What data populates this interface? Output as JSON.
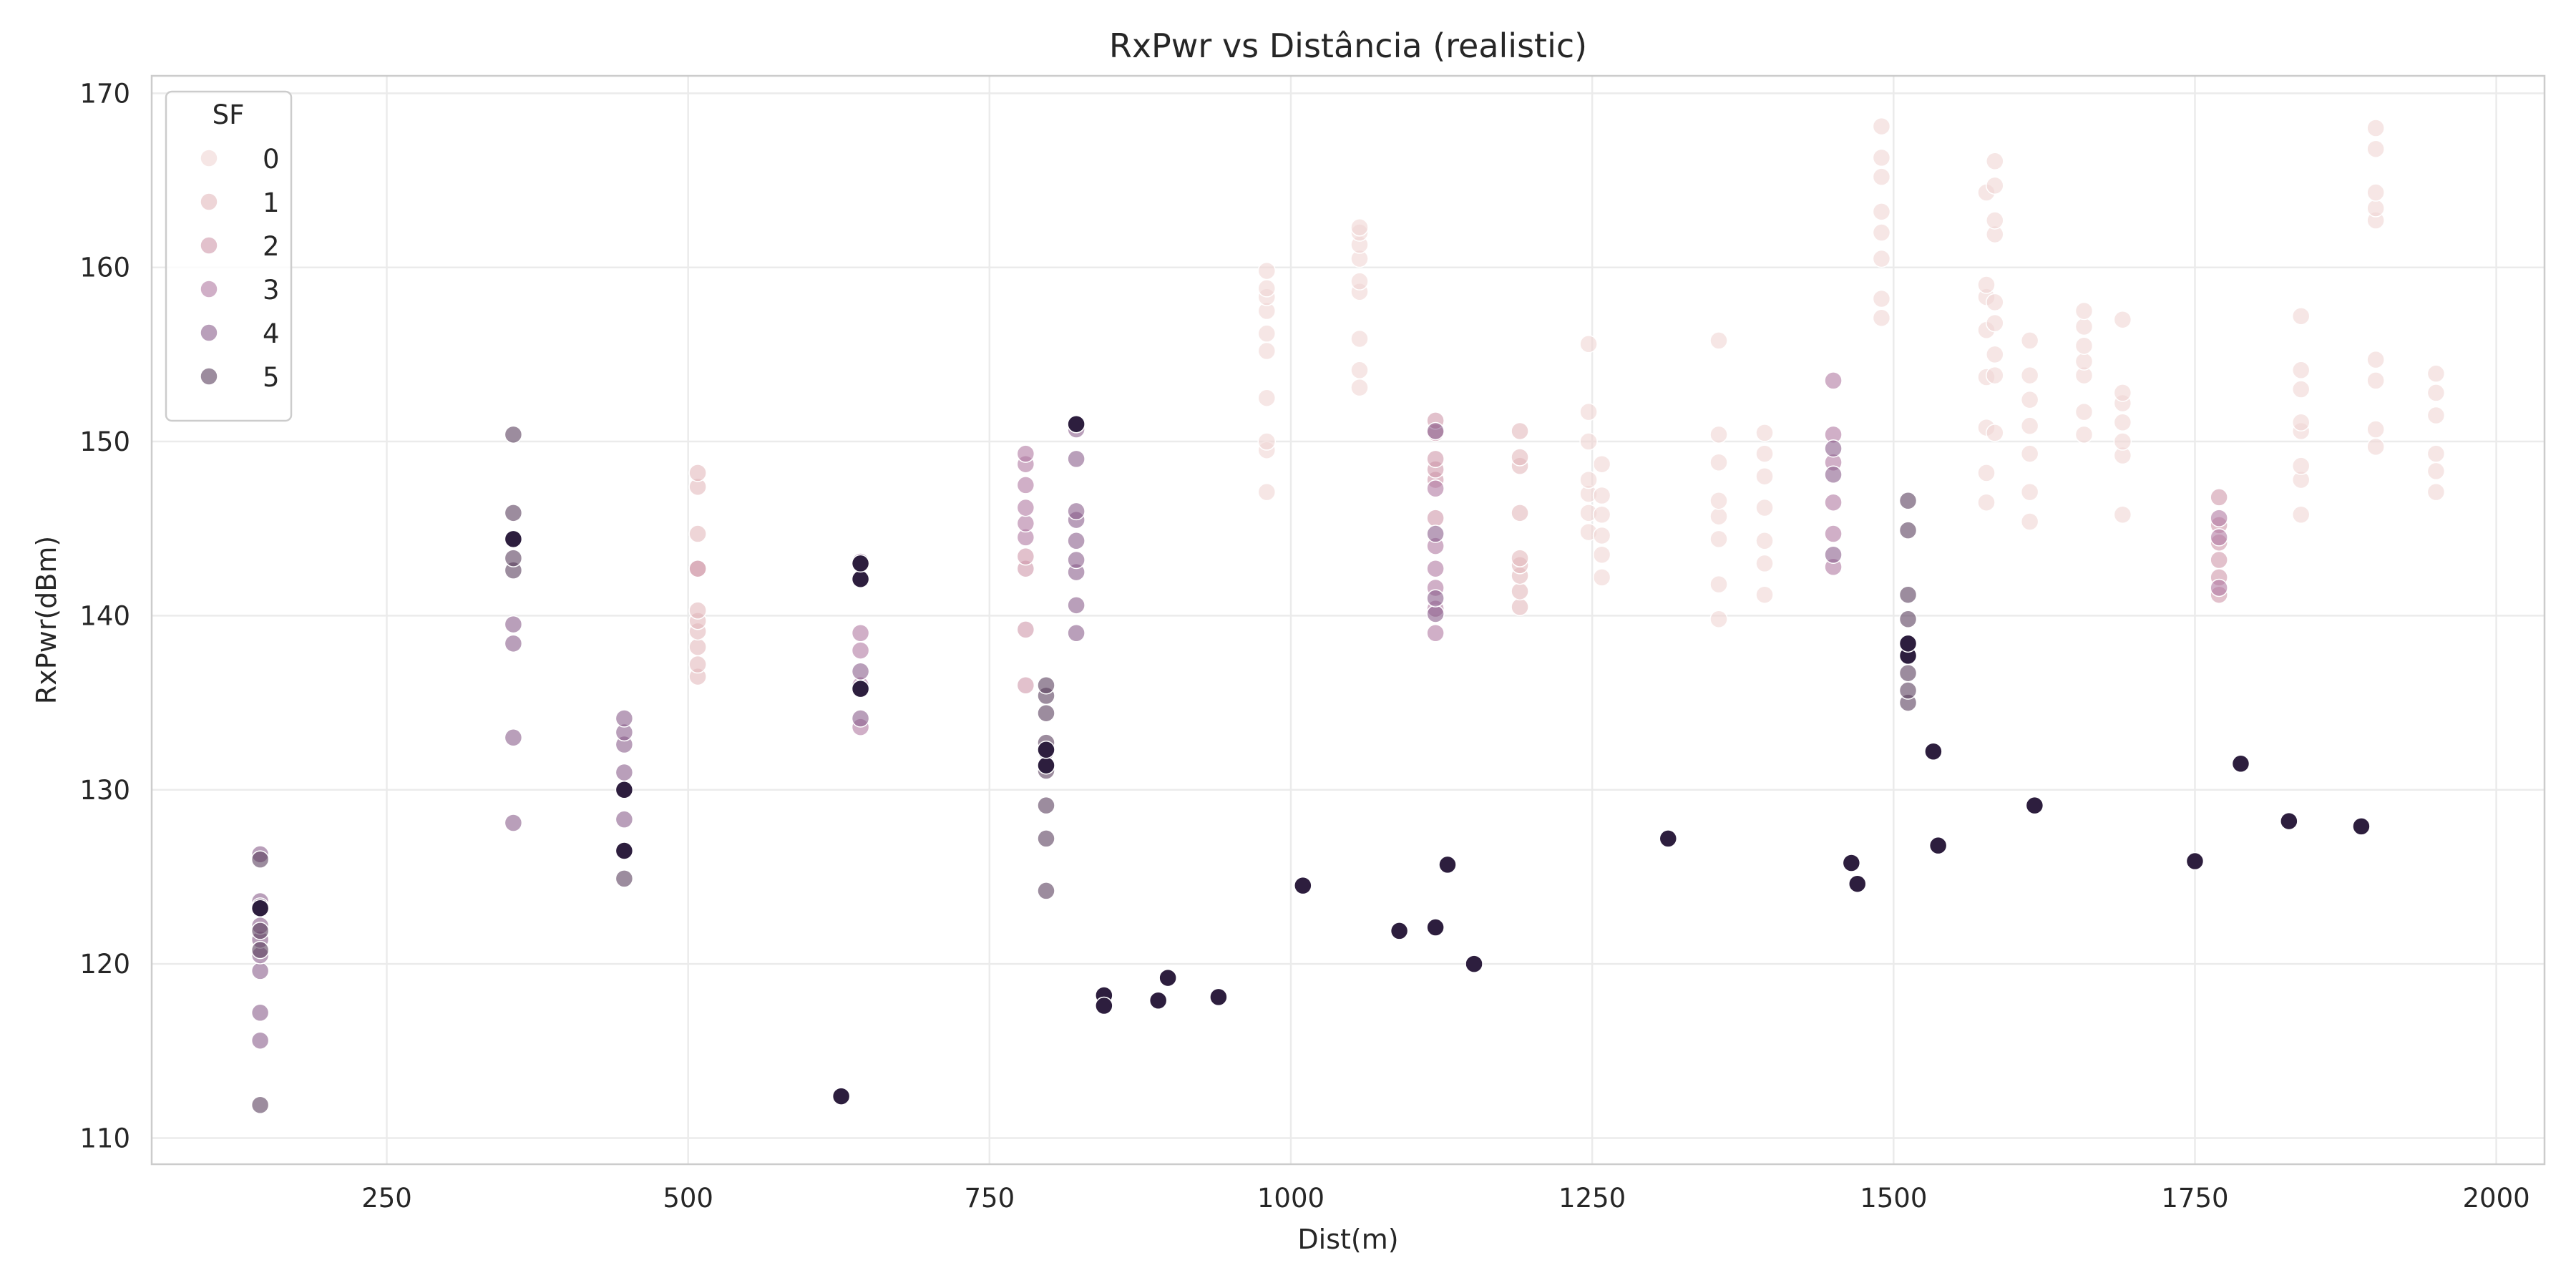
{
  "chart_data": {
    "type": "scatter",
    "title": "RxPwr vs Distância (realistic)",
    "xlabel": "Dist(m)",
    "ylabel": "RxPwr(dBm)",
    "xlim": [
      55,
      2040
    ],
    "ylim": [
      108.5,
      171
    ],
    "xticks": [
      250,
      500,
      750,
      1000,
      1250,
      1500,
      1750,
      2000
    ],
    "yticks": [
      110,
      120,
      130,
      140,
      150,
      160,
      170
    ],
    "grid": true,
    "legend": {
      "title": "SF",
      "position": "top-left"
    },
    "point_opacity": 0.6,
    "series": [
      {
        "name": "0",
        "color": "#f0d6d3",
        "points": [
          [
            980,
            147.1
          ],
          [
            980,
            149.5
          ],
          [
            980,
            150
          ],
          [
            980,
            152.5
          ],
          [
            980,
            155.2
          ],
          [
            980,
            156.2
          ],
          [
            980,
            157.5
          ],
          [
            980,
            158.3
          ],
          [
            980,
            158.8
          ],
          [
            980,
            159.8
          ],
          [
            1057,
            153.1
          ],
          [
            1057,
            154.1
          ],
          [
            1057,
            155.9
          ],
          [
            1057,
            158.6
          ],
          [
            1057,
            159.2
          ],
          [
            1057,
            160.5
          ],
          [
            1057,
            161.3
          ],
          [
            1057,
            162
          ],
          [
            1057,
            162.3
          ],
          [
            1247,
            144.8
          ],
          [
            1247,
            145.9
          ],
          [
            1247,
            147
          ],
          [
            1247,
            147.8
          ],
          [
            1247,
            150
          ],
          [
            1247,
            151.7
          ],
          [
            1247,
            155.6
          ],
          [
            1258,
            142.2
          ],
          [
            1258,
            143.5
          ],
          [
            1258,
            144.6
          ],
          [
            1258,
            145.8
          ],
          [
            1258,
            146.9
          ],
          [
            1258,
            148.7
          ],
          [
            1355,
            139.8
          ],
          [
            1355,
            141.8
          ],
          [
            1355,
            144.4
          ],
          [
            1355,
            145.7
          ],
          [
            1355,
            146.6
          ],
          [
            1355,
            148.8
          ],
          [
            1355,
            150.4
          ],
          [
            1355,
            155.8
          ],
          [
            1393,
            141.2
          ],
          [
            1393,
            143
          ],
          [
            1393,
            144.3
          ],
          [
            1393,
            146.2
          ],
          [
            1393,
            148
          ],
          [
            1393,
            149.3
          ],
          [
            1393,
            150.5
          ],
          [
            1490,
            157.1
          ],
          [
            1490,
            158.2
          ],
          [
            1490,
            160.5
          ],
          [
            1490,
            162
          ],
          [
            1490,
            163.2
          ],
          [
            1490,
            165.2
          ],
          [
            1490,
            166.3
          ],
          [
            1490,
            168.1
          ],
          [
            1577,
            146.5
          ],
          [
            1577,
            148.2
          ],
          [
            1577,
            150.8
          ],
          [
            1577,
            153.7
          ],
          [
            1577,
            156.4
          ],
          [
            1577,
            158.3
          ],
          [
            1577,
            159
          ],
          [
            1577,
            164.3
          ],
          [
            1584,
            150.5
          ],
          [
            1584,
            153.8
          ],
          [
            1584,
            155
          ],
          [
            1584,
            156.8
          ],
          [
            1584,
            158
          ],
          [
            1584,
            161.9
          ],
          [
            1584,
            162.7
          ],
          [
            1584,
            164.7
          ],
          [
            1584,
            166.1
          ],
          [
            1613,
            145.4
          ],
          [
            1613,
            147.1
          ],
          [
            1613,
            149.3
          ],
          [
            1613,
            150.9
          ],
          [
            1613,
            152.4
          ],
          [
            1613,
            153.8
          ],
          [
            1613,
            155.8
          ],
          [
            1658,
            150.4
          ],
          [
            1658,
            151.7
          ],
          [
            1658,
            153.8
          ],
          [
            1658,
            154.6
          ],
          [
            1658,
            155.5
          ],
          [
            1658,
            156.6
          ],
          [
            1658,
            157.5
          ],
          [
            1690,
            145.8
          ],
          [
            1690,
            149.2
          ],
          [
            1690,
            150
          ],
          [
            1690,
            151.1
          ],
          [
            1690,
            152.2
          ],
          [
            1690,
            152.8
          ],
          [
            1690,
            157
          ],
          [
            1838,
            145.8
          ],
          [
            1838,
            147.8
          ],
          [
            1838,
            148.6
          ],
          [
            1838,
            150.6
          ],
          [
            1838,
            151.1
          ],
          [
            1838,
            153
          ],
          [
            1838,
            154.1
          ],
          [
            1838,
            157.2
          ],
          [
            1900,
            149.7
          ],
          [
            1900,
            150.7
          ],
          [
            1900,
            153.5
          ],
          [
            1900,
            154.7
          ],
          [
            1900,
            162.7
          ],
          [
            1900,
            163.4
          ],
          [
            1900,
            164.3
          ],
          [
            1900,
            166.8
          ],
          [
            1900,
            168
          ],
          [
            1950,
            147.1
          ],
          [
            1950,
            148.3
          ],
          [
            1950,
            149.3
          ],
          [
            1950,
            151.5
          ],
          [
            1950,
            152.8
          ],
          [
            1950,
            153.9
          ]
        ]
      },
      {
        "name": "1",
        "color": "#e3b9bc",
        "points": [
          [
            508,
            136.5
          ],
          [
            508,
            137.2
          ],
          [
            508,
            138.2
          ],
          [
            508,
            139.1
          ],
          [
            508,
            139.7
          ],
          [
            508,
            140.3
          ],
          [
            508,
            142.7
          ],
          [
            508,
            144.7
          ],
          [
            508,
            147.4
          ],
          [
            508,
            148.2
          ],
          [
            1190,
            140.5
          ],
          [
            1190,
            141.4
          ],
          [
            1190,
            142.3
          ],
          [
            1190,
            142.9
          ],
          [
            1190,
            143.3
          ],
          [
            1190,
            145.9
          ],
          [
            1190,
            148.6
          ],
          [
            1190,
            149.1
          ],
          [
            1190,
            150.6
          ]
        ]
      },
      {
        "name": "2",
        "color": "#cf97aa",
        "points": [
          [
            508,
            142.7
          ],
          [
            780,
            136
          ],
          [
            780,
            139.2
          ],
          [
            780,
            142.7
          ],
          [
            780,
            143.4
          ],
          [
            1120,
            145.6
          ],
          [
            1120,
            147.8
          ],
          [
            1120,
            148.4
          ],
          [
            1120,
            149
          ],
          [
            1120,
            150.5
          ],
          [
            1120,
            151.2
          ],
          [
            1770,
            141.2
          ],
          [
            1770,
            142.2
          ],
          [
            1770,
            143.2
          ],
          [
            1770,
            144.2
          ],
          [
            1770,
            145.2
          ],
          [
            1770,
            146.8
          ]
        ]
      },
      {
        "name": "3",
        "color": "#b07aa1",
        "points": [
          [
            643,
            133.6
          ],
          [
            643,
            136
          ],
          [
            643,
            138
          ],
          [
            643,
            139
          ],
          [
            780,
            144.5
          ],
          [
            780,
            145.3
          ],
          [
            780,
            146.2
          ],
          [
            780,
            147.5
          ],
          [
            780,
            148.7
          ],
          [
            780,
            149.3
          ],
          [
            1120,
            139
          ],
          [
            1120,
            140.4
          ],
          [
            1120,
            141.6
          ],
          [
            1120,
            142.7
          ],
          [
            1120,
            144
          ],
          [
            1120,
            147.3
          ],
          [
            1450,
            142.8
          ],
          [
            1450,
            144.7
          ],
          [
            1450,
            146.5
          ],
          [
            1450,
            148.8
          ],
          [
            1450,
            150.4
          ],
          [
            1450,
            153.5
          ],
          [
            1770,
            141.6
          ],
          [
            1770,
            144.5
          ],
          [
            1770,
            145.6
          ]
        ]
      },
      {
        "name": "4",
        "color": "#8a5f8c",
        "points": [
          [
            145,
            115.6
          ],
          [
            145,
            117.2
          ],
          [
            145,
            119.6
          ],
          [
            145,
            120.5
          ],
          [
            145,
            121.4
          ],
          [
            145,
            122.2
          ],
          [
            145,
            123.6
          ],
          [
            145,
            126.3
          ],
          [
            355,
            128.1
          ],
          [
            355,
            133
          ],
          [
            355,
            138.4
          ],
          [
            355,
            139.5
          ],
          [
            447,
            128.3
          ],
          [
            447,
            131
          ],
          [
            447,
            132.6
          ],
          [
            447,
            133.3
          ],
          [
            447,
            134.1
          ],
          [
            643,
            134.1
          ],
          [
            643,
            136.8
          ],
          [
            643,
            142.1
          ],
          [
            643,
            143.1
          ],
          [
            822,
            139
          ],
          [
            822,
            140.6
          ],
          [
            822,
            142.5
          ],
          [
            822,
            143.2
          ],
          [
            822,
            144.3
          ],
          [
            822,
            145.5
          ],
          [
            822,
            146
          ],
          [
            822,
            149
          ],
          [
            822,
            150.7
          ],
          [
            1120,
            140.1
          ],
          [
            1120,
            141
          ],
          [
            1120,
            144.7
          ],
          [
            1120,
            150.6
          ],
          [
            1450,
            143.5
          ],
          [
            1450,
            148.1
          ],
          [
            1450,
            149.6
          ]
        ]
      },
      {
        "name": "5",
        "color": "#5a405e",
        "points": [
          [
            145,
            111.9
          ],
          [
            145,
            120.8
          ],
          [
            145,
            121.9
          ],
          [
            145,
            123.3
          ],
          [
            145,
            126
          ],
          [
            355,
            142.6
          ],
          [
            355,
            143.3
          ],
          [
            355,
            144.4
          ],
          [
            355,
            145.9
          ],
          [
            355,
            150.4
          ],
          [
            447,
            124.9
          ],
          [
            447,
            126.5
          ],
          [
            447,
            130
          ],
          [
            797,
            124.2
          ],
          [
            797,
            127.2
          ],
          [
            797,
            129.1
          ],
          [
            797,
            131.1
          ],
          [
            797,
            132.2
          ],
          [
            797,
            132.7
          ],
          [
            797,
            134.4
          ],
          [
            797,
            135.4
          ],
          [
            797,
            136
          ],
          [
            822,
            151
          ],
          [
            1512,
            135
          ],
          [
            1512,
            135.7
          ],
          [
            1512,
            136.7
          ],
          [
            1512,
            137.7
          ],
          [
            1512,
            138.4
          ],
          [
            1512,
            139.8
          ],
          [
            1512,
            141.2
          ],
          [
            1512,
            144.9
          ],
          [
            1512,
            146.6
          ]
        ]
      },
      {
        "name": "",
        "color": "#2d1e3e",
        "opaque": true,
        "points": [
          [
            145,
            123.2
          ],
          [
            355,
            144.4
          ],
          [
            447,
            126.5
          ],
          [
            447,
            130
          ],
          [
            627,
            112.4
          ],
          [
            643,
            142.1
          ],
          [
            643,
            143
          ],
          [
            643,
            135.8
          ],
          [
            797,
            131.4
          ],
          [
            797,
            132.3
          ],
          [
            822,
            151
          ],
          [
            845,
            118.2
          ],
          [
            845,
            117.6
          ],
          [
            890,
            117.9
          ],
          [
            898,
            119.2
          ],
          [
            940,
            118.1
          ],
          [
            1010,
            124.5
          ],
          [
            1090,
            121.9
          ],
          [
            1120,
            122.1
          ],
          [
            1130,
            125.7
          ],
          [
            1152,
            120
          ],
          [
            1313,
            127.2
          ],
          [
            1465,
            125.8
          ],
          [
            1470,
            124.6
          ],
          [
            1512,
            137.7
          ],
          [
            1512,
            138.4
          ],
          [
            1533,
            132.2
          ],
          [
            1537,
            126.8
          ],
          [
            1617,
            129.1
          ],
          [
            1750,
            125.9
          ],
          [
            1788,
            131.5
          ],
          [
            1828,
            128.2
          ],
          [
            1888,
            127.9
          ]
        ]
      }
    ]
  }
}
